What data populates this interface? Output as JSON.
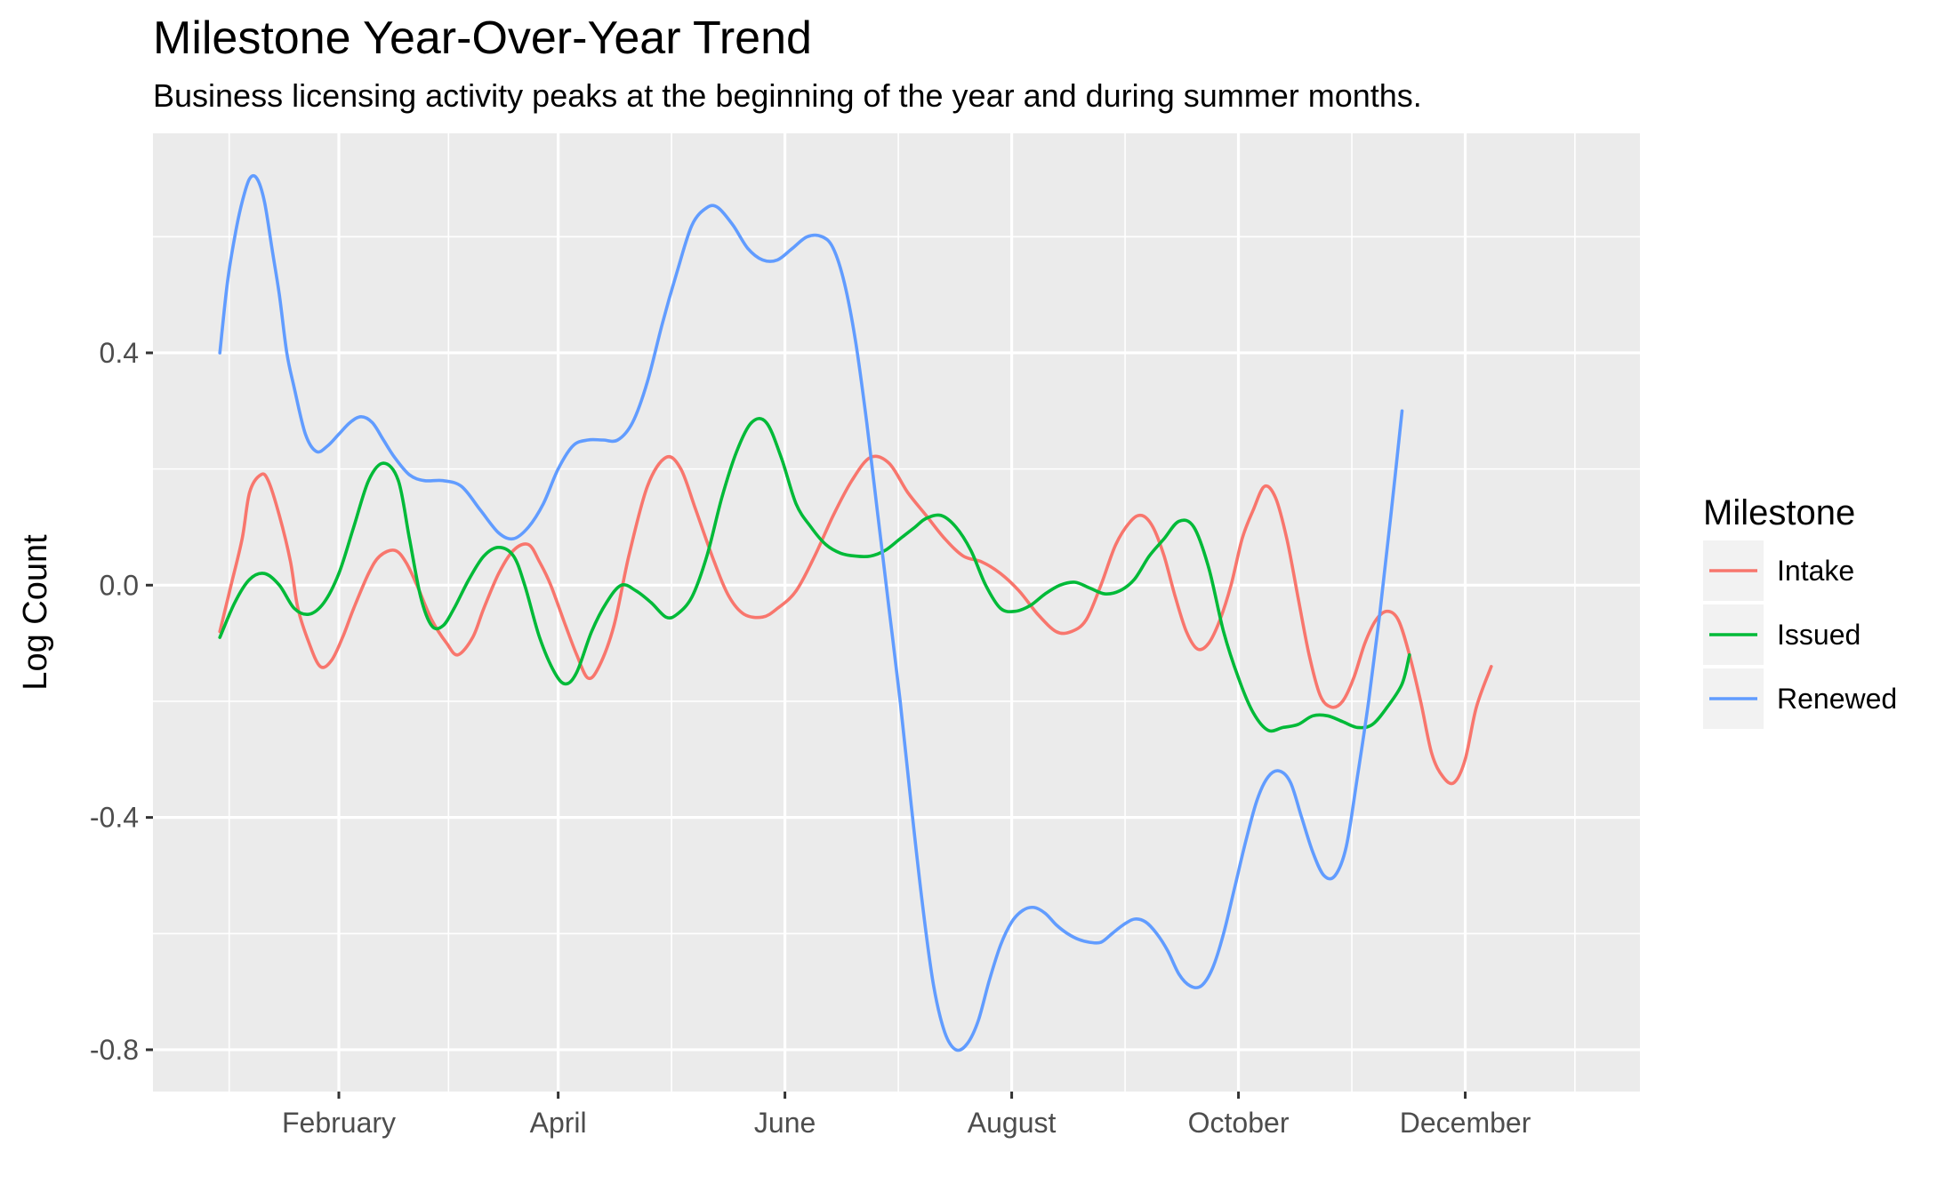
{
  "chart_data": {
    "type": "line",
    "title": "Milestone Year-Over-Year Trend",
    "subtitle": "Business licensing activity peaks at the beginning of the year and during summer months.",
    "xlabel": "",
    "ylabel": "Log Count",
    "x_ticks": [
      {
        "label": "February",
        "day": 32
      },
      {
        "label": "April",
        "day": 91
      },
      {
        "label": "June",
        "day": 152
      },
      {
        "label": "August",
        "day": 213
      },
      {
        "label": "October",
        "day": 274
      },
      {
        "label": "December",
        "day": 335
      }
    ],
    "y_ticks": [
      {
        "label": "0.4",
        "value": 0.4
      },
      {
        "label": "0.0",
        "value": 0.0
      },
      {
        "label": "-0.4",
        "value": -0.4
      },
      {
        "label": "-0.8",
        "value": -0.8
      }
    ],
    "xlim": [
      -18,
      382
    ],
    "ylim": [
      -0.872,
      0.778
    ],
    "grid": true,
    "legend_title": "Milestone",
    "legend_position": "right",
    "series": [
      {
        "name": "Intake",
        "color": "#F8766D",
        "points": [
          [
            0,
            -0.08
          ],
          [
            3,
            0.0
          ],
          [
            6,
            0.08
          ],
          [
            8,
            0.16
          ],
          [
            11,
            0.19
          ],
          [
            13,
            0.18
          ],
          [
            16,
            0.12
          ],
          [
            19,
            0.04
          ],
          [
            21,
            -0.04
          ],
          [
            24,
            -0.1
          ],
          [
            27,
            -0.14
          ],
          [
            30,
            -0.13
          ],
          [
            33,
            -0.09
          ],
          [
            36,
            -0.04
          ],
          [
            40,
            0.02
          ],
          [
            43,
            0.05
          ],
          [
            47,
            0.06
          ],
          [
            50,
            0.04
          ],
          [
            53,
            0.0
          ],
          [
            57,
            -0.06
          ],
          [
            61,
            -0.1
          ],
          [
            64,
            -0.12
          ],
          [
            68,
            -0.09
          ],
          [
            71,
            -0.04
          ],
          [
            75,
            0.02
          ],
          [
            79,
            0.06
          ],
          [
            83,
            0.07
          ],
          [
            86,
            0.04
          ],
          [
            89,
            0.0
          ],
          [
            93,
            -0.07
          ],
          [
            96,
            -0.12
          ],
          [
            99,
            -0.16
          ],
          [
            102,
            -0.14
          ],
          [
            106,
            -0.07
          ],
          [
            110,
            0.05
          ],
          [
            115,
            0.17
          ],
          [
            120,
            0.22
          ],
          [
            124,
            0.2
          ],
          [
            128,
            0.13
          ],
          [
            133,
            0.04
          ],
          [
            137,
            -0.02
          ],
          [
            141,
            -0.05
          ],
          [
            146,
            -0.055
          ],
          [
            150,
            -0.04
          ],
          [
            155,
            -0.01
          ],
          [
            160,
            0.05
          ],
          [
            165,
            0.12
          ],
          [
            170,
            0.18
          ],
          [
            175,
            0.22
          ],
          [
            180,
            0.21
          ],
          [
            185,
            0.16
          ],
          [
            190,
            0.12
          ],
          [
            195,
            0.08
          ],
          [
            200,
            0.05
          ],
          [
            205,
            0.04
          ],
          [
            210,
            0.02
          ],
          [
            215,
            -0.01
          ],
          [
            220,
            -0.05
          ],
          [
            225,
            -0.08
          ],
          [
            229,
            -0.08
          ],
          [
            233,
            -0.06
          ],
          [
            237,
            0.0
          ],
          [
            241,
            0.07
          ],
          [
            245,
            0.11
          ],
          [
            248,
            0.12
          ],
          [
            251,
            0.1
          ],
          [
            254,
            0.05
          ],
          [
            257,
            -0.02
          ],
          [
            260,
            -0.08
          ],
          [
            263,
            -0.11
          ],
          [
            266,
            -0.1
          ],
          [
            269,
            -0.06
          ],
          [
            272,
            0.0
          ],
          [
            275,
            0.08
          ],
          [
            278,
            0.13
          ],
          [
            281,
            0.17
          ],
          [
            284,
            0.15
          ],
          [
            287,
            0.08
          ],
          [
            290,
            -0.02
          ],
          [
            293,
            -0.12
          ],
          [
            296,
            -0.19
          ],
          [
            299,
            -0.21
          ],
          [
            302,
            -0.2
          ],
          [
            305,
            -0.16
          ],
          [
            308,
            -0.1
          ],
          [
            311,
            -0.06
          ],
          [
            314,
            -0.045
          ],
          [
            317,
            -0.06
          ],
          [
            320,
            -0.12
          ],
          [
            323,
            -0.2
          ],
          [
            326,
            -0.29
          ],
          [
            329,
            -0.33
          ],
          [
            332,
            -0.34
          ],
          [
            335,
            -0.3
          ],
          [
            338,
            -0.21
          ],
          [
            342,
            -0.14
          ]
        ]
      },
      {
        "name": "Issued",
        "color": "#00BA38",
        "points": [
          [
            0,
            -0.09
          ],
          [
            4,
            -0.03
          ],
          [
            8,
            0.01
          ],
          [
            12,
            0.02
          ],
          [
            16,
            0.0
          ],
          [
            20,
            -0.04
          ],
          [
            24,
            -0.05
          ],
          [
            28,
            -0.03
          ],
          [
            32,
            0.02
          ],
          [
            36,
            0.1
          ],
          [
            40,
            0.18
          ],
          [
            44,
            0.21
          ],
          [
            48,
            0.18
          ],
          [
            51,
            0.08
          ],
          [
            54,
            -0.02
          ],
          [
            57,
            -0.07
          ],
          [
            60,
            -0.07
          ],
          [
            63,
            -0.04
          ],
          [
            67,
            0.01
          ],
          [
            71,
            0.05
          ],
          [
            75,
            0.065
          ],
          [
            79,
            0.05
          ],
          [
            82,
            0.0
          ],
          [
            86,
            -0.09
          ],
          [
            90,
            -0.15
          ],
          [
            93,
            -0.17
          ],
          [
            96,
            -0.15
          ],
          [
            100,
            -0.08
          ],
          [
            104,
            -0.03
          ],
          [
            108,
            0.0
          ],
          [
            112,
            -0.01
          ],
          [
            116,
            -0.03
          ],
          [
            120,
            -0.055
          ],
          [
            123,
            -0.05
          ],
          [
            127,
            -0.02
          ],
          [
            131,
            0.05
          ],
          [
            135,
            0.15
          ],
          [
            139,
            0.23
          ],
          [
            143,
            0.28
          ],
          [
            147,
            0.28
          ],
          [
            151,
            0.22
          ],
          [
            155,
            0.14
          ],
          [
            159,
            0.1
          ],
          [
            163,
            0.07
          ],
          [
            167,
            0.055
          ],
          [
            171,
            0.05
          ],
          [
            175,
            0.05
          ],
          [
            179,
            0.06
          ],
          [
            183,
            0.08
          ],
          [
            187,
            0.1
          ],
          [
            190,
            0.115
          ],
          [
            194,
            0.12
          ],
          [
            198,
            0.1
          ],
          [
            202,
            0.06
          ],
          [
            206,
            0.0
          ],
          [
            210,
            -0.04
          ],
          [
            214,
            -0.045
          ],
          [
            218,
            -0.035
          ],
          [
            222,
            -0.015
          ],
          [
            226,
            0.0
          ],
          [
            230,
            0.005
          ],
          [
            234,
            -0.005
          ],
          [
            238,
            -0.015
          ],
          [
            242,
            -0.01
          ],
          [
            246,
            0.01
          ],
          [
            250,
            0.05
          ],
          [
            254,
            0.08
          ],
          [
            258,
            0.11
          ],
          [
            262,
            0.1
          ],
          [
            266,
            0.03
          ],
          [
            270,
            -0.08
          ],
          [
            274,
            -0.16
          ],
          [
            278,
            -0.22
          ],
          [
            282,
            -0.25
          ],
          [
            286,
            -0.245
          ],
          [
            290,
            -0.24
          ],
          [
            294,
            -0.225
          ],
          [
            298,
            -0.225
          ],
          [
            302,
            -0.235
          ],
          [
            306,
            -0.245
          ],
          [
            310,
            -0.24
          ],
          [
            314,
            -0.21
          ],
          [
            318,
            -0.17
          ],
          [
            320,
            -0.12
          ]
        ]
      },
      {
        "name": "Renewed",
        "color": "#619CFF",
        "points": [
          [
            0,
            0.4
          ],
          [
            2,
            0.52
          ],
          [
            4,
            0.6
          ],
          [
            6,
            0.66
          ],
          [
            8,
            0.7
          ],
          [
            10,
            0.7
          ],
          [
            12,
            0.66
          ],
          [
            14,
            0.58
          ],
          [
            16,
            0.5
          ],
          [
            18,
            0.4
          ],
          [
            20,
            0.34
          ],
          [
            23,
            0.26
          ],
          [
            26,
            0.23
          ],
          [
            29,
            0.24
          ],
          [
            32,
            0.26
          ],
          [
            35,
            0.28
          ],
          [
            38,
            0.29
          ],
          [
            41,
            0.28
          ],
          [
            44,
            0.25
          ],
          [
            47,
            0.22
          ],
          [
            51,
            0.19
          ],
          [
            55,
            0.18
          ],
          [
            60,
            0.18
          ],
          [
            65,
            0.17
          ],
          [
            70,
            0.13
          ],
          [
            75,
            0.09
          ],
          [
            79,
            0.08
          ],
          [
            83,
            0.1
          ],
          [
            87,
            0.14
          ],
          [
            91,
            0.2
          ],
          [
            95,
            0.24
          ],
          [
            99,
            0.25
          ],
          [
            103,
            0.25
          ],
          [
            107,
            0.25
          ],
          [
            111,
            0.28
          ],
          [
            115,
            0.35
          ],
          [
            119,
            0.45
          ],
          [
            123,
            0.54
          ],
          [
            127,
            0.62
          ],
          [
            131,
            0.65
          ],
          [
            134,
            0.65
          ],
          [
            138,
            0.62
          ],
          [
            142,
            0.58
          ],
          [
            146,
            0.56
          ],
          [
            150,
            0.56
          ],
          [
            154,
            0.58
          ],
          [
            158,
            0.6
          ],
          [
            162,
            0.6
          ],
          [
            165,
            0.58
          ],
          [
            168,
            0.52
          ],
          [
            171,
            0.42
          ],
          [
            174,
            0.28
          ],
          [
            177,
            0.12
          ],
          [
            180,
            -0.04
          ],
          [
            183,
            -0.2
          ],
          [
            186,
            -0.38
          ],
          [
            189,
            -0.55
          ],
          [
            192,
            -0.69
          ],
          [
            195,
            -0.77
          ],
          [
            198,
            -0.8
          ],
          [
            201,
            -0.79
          ],
          [
            204,
            -0.75
          ],
          [
            207,
            -0.68
          ],
          [
            210,
            -0.62
          ],
          [
            213,
            -0.58
          ],
          [
            216,
            -0.56
          ],
          [
            219,
            -0.555
          ],
          [
            222,
            -0.565
          ],
          [
            225,
            -0.585
          ],
          [
            228,
            -0.6
          ],
          [
            231,
            -0.61
          ],
          [
            234,
            -0.615
          ],
          [
            237,
            -0.615
          ],
          [
            240,
            -0.6
          ],
          [
            243,
            -0.585
          ],
          [
            246,
            -0.575
          ],
          [
            249,
            -0.58
          ],
          [
            252,
            -0.6
          ],
          [
            255,
            -0.63
          ],
          [
            258,
            -0.67
          ],
          [
            261,
            -0.69
          ],
          [
            264,
            -0.69
          ],
          [
            267,
            -0.66
          ],
          [
            270,
            -0.6
          ],
          [
            273,
            -0.52
          ],
          [
            276,
            -0.44
          ],
          [
            279,
            -0.37
          ],
          [
            282,
            -0.33
          ],
          [
            285,
            -0.32
          ],
          [
            288,
            -0.34
          ],
          [
            291,
            -0.4
          ],
          [
            294,
            -0.46
          ],
          [
            297,
            -0.5
          ],
          [
            300,
            -0.5
          ],
          [
            303,
            -0.45
          ],
          [
            306,
            -0.33
          ],
          [
            309,
            -0.2
          ],
          [
            312,
            -0.05
          ],
          [
            315,
            0.12
          ],
          [
            318,
            0.3
          ]
        ]
      }
    ]
  }
}
